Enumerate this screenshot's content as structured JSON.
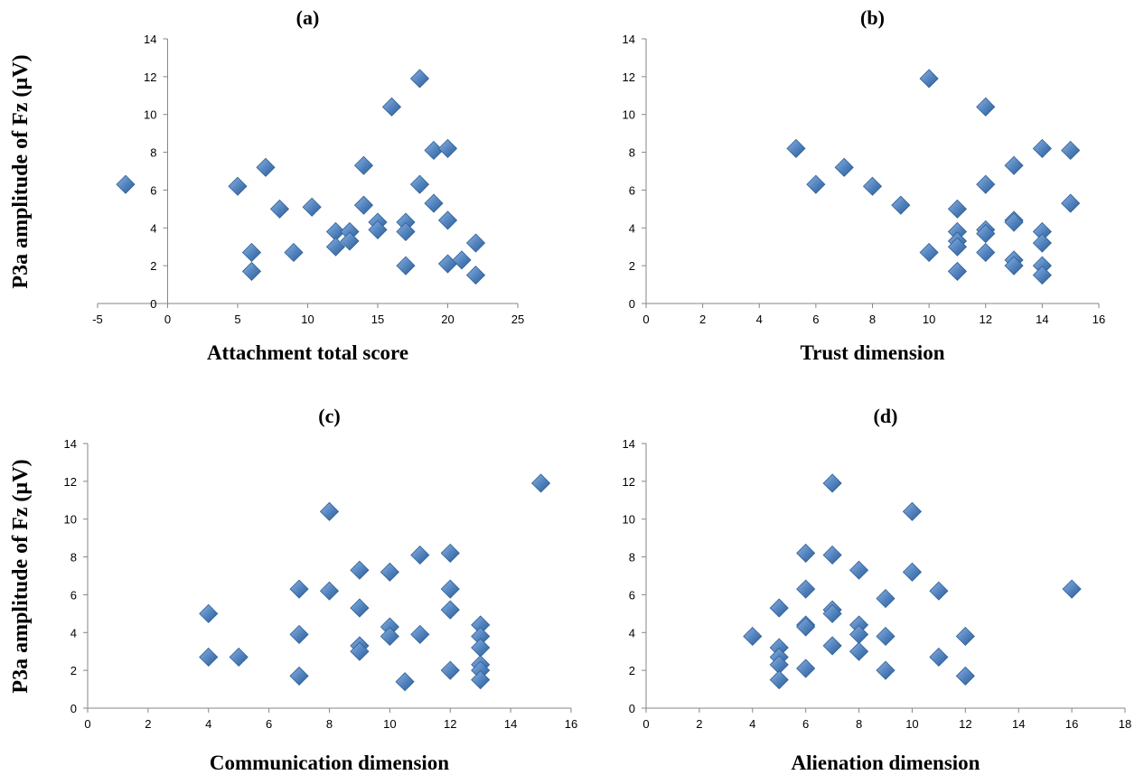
{
  "chart_data": [
    {
      "type": "scatter",
      "title": "(a)",
      "xlabel": "Attachment total score",
      "ylabel": "P3a amplitude of Fz (µV)",
      "xlim": [
        -5,
        25
      ],
      "ylim": [
        0,
        14
      ],
      "xticks": [
        -5,
        0,
        5,
        10,
        15,
        20,
        25
      ],
      "yticks": [
        0,
        2,
        4,
        6,
        8,
        10,
        12,
        14
      ],
      "marker": "diamond",
      "color": "#4f81bd",
      "points": [
        {
          "x": -3,
          "y": 6.3
        },
        {
          "x": 5,
          "y": 6.2
        },
        {
          "x": 6,
          "y": 2.7
        },
        {
          "x": 6,
          "y": 1.7
        },
        {
          "x": 7,
          "y": 7.2
        },
        {
          "x": 8,
          "y": 5.0
        },
        {
          "x": 9,
          "y": 2.7
        },
        {
          "x": 10.3,
          "y": 5.1
        },
        {
          "x": 12,
          "y": 3.8
        },
        {
          "x": 12,
          "y": 3.0
        },
        {
          "x": 13,
          "y": 3.8
        },
        {
          "x": 13,
          "y": 3.3
        },
        {
          "x": 14,
          "y": 7.3
        },
        {
          "x": 14,
          "y": 5.2
        },
        {
          "x": 15,
          "y": 4.3
        },
        {
          "x": 15,
          "y": 3.9
        },
        {
          "x": 16,
          "y": 10.4
        },
        {
          "x": 17,
          "y": 4.3
        },
        {
          "x": 17,
          "y": 3.8
        },
        {
          "x": 17,
          "y": 2.0
        },
        {
          "x": 18,
          "y": 11.9
        },
        {
          "x": 18,
          "y": 6.3
        },
        {
          "x": 19,
          "y": 8.1
        },
        {
          "x": 19,
          "y": 5.3
        },
        {
          "x": 20,
          "y": 8.2
        },
        {
          "x": 20,
          "y": 4.4
        },
        {
          "x": 20,
          "y": 2.1
        },
        {
          "x": 21,
          "y": 2.3
        },
        {
          "x": 22,
          "y": 3.2
        },
        {
          "x": 22,
          "y": 1.5
        }
      ]
    },
    {
      "type": "scatter",
      "title": "(b)",
      "xlabel": "Trust dimension",
      "ylabel": "",
      "xlim": [
        0,
        16
      ],
      "ylim": [
        0,
        14
      ],
      "xticks": [
        0,
        2,
        4,
        6,
        8,
        10,
        12,
        14,
        16
      ],
      "yticks": [
        0,
        2,
        4,
        6,
        8,
        10,
        12,
        14
      ],
      "marker": "diamond",
      "color": "#4f81bd",
      "points": [
        {
          "x": 5.3,
          "y": 8.2
        },
        {
          "x": 6,
          "y": 6.3
        },
        {
          "x": 7,
          "y": 7.2
        },
        {
          "x": 8,
          "y": 6.2
        },
        {
          "x": 9,
          "y": 5.2
        },
        {
          "x": 10,
          "y": 11.9
        },
        {
          "x": 10,
          "y": 2.7
        },
        {
          "x": 11,
          "y": 5.0
        },
        {
          "x": 11,
          "y": 3.8
        },
        {
          "x": 11,
          "y": 3.3
        },
        {
          "x": 11,
          "y": 3.0
        },
        {
          "x": 11,
          "y": 1.7
        },
        {
          "x": 12,
          "y": 10.4
        },
        {
          "x": 12,
          "y": 6.3
        },
        {
          "x": 12,
          "y": 3.9
        },
        {
          "x": 12,
          "y": 3.7
        },
        {
          "x": 12,
          "y": 2.7
        },
        {
          "x": 13,
          "y": 7.3
        },
        {
          "x": 13,
          "y": 4.4
        },
        {
          "x": 13,
          "y": 4.3
        },
        {
          "x": 13,
          "y": 2.3
        },
        {
          "x": 13,
          "y": 2.0
        },
        {
          "x": 14,
          "y": 8.2
        },
        {
          "x": 14,
          "y": 3.8
        },
        {
          "x": 14,
          "y": 3.2
        },
        {
          "x": 14,
          "y": 2.0
        },
        {
          "x": 14,
          "y": 1.5
        },
        {
          "x": 15,
          "y": 8.1
        },
        {
          "x": 15,
          "y": 5.3
        }
      ]
    },
    {
      "type": "scatter",
      "title": "(c)",
      "xlabel": "Communication dimension",
      "ylabel": "P3a amplitude of Fz (µV)",
      "xlim": [
        0,
        16
      ],
      "ylim": [
        0,
        14
      ],
      "xticks": [
        0,
        2,
        4,
        6,
        8,
        10,
        12,
        14,
        16
      ],
      "yticks": [
        0,
        2,
        4,
        6,
        8,
        10,
        12,
        14
      ],
      "marker": "diamond",
      "color": "#4f81bd",
      "points": [
        {
          "x": 4,
          "y": 5.0
        },
        {
          "x": 4,
          "y": 2.7
        },
        {
          "x": 5,
          "y": 2.7
        },
        {
          "x": 7,
          "y": 6.3
        },
        {
          "x": 7,
          "y": 3.9
        },
        {
          "x": 7,
          "y": 1.7
        },
        {
          "x": 8,
          "y": 10.4
        },
        {
          "x": 8,
          "y": 6.2
        },
        {
          "x": 9,
          "y": 7.3
        },
        {
          "x": 9,
          "y": 5.3
        },
        {
          "x": 9,
          "y": 3.3
        },
        {
          "x": 9,
          "y": 3.0
        },
        {
          "x": 10,
          "y": 7.2
        },
        {
          "x": 10,
          "y": 4.3
        },
        {
          "x": 10,
          "y": 3.8
        },
        {
          "x": 10.5,
          "y": 1.4
        },
        {
          "x": 11,
          "y": 8.1
        },
        {
          "x": 11,
          "y": 3.9
        },
        {
          "x": 12,
          "y": 8.2
        },
        {
          "x": 12,
          "y": 6.3
        },
        {
          "x": 12,
          "y": 5.2
        },
        {
          "x": 12,
          "y": 2.0
        },
        {
          "x": 13,
          "y": 4.4
        },
        {
          "x": 13,
          "y": 3.8
        },
        {
          "x": 13,
          "y": 3.2
        },
        {
          "x": 13,
          "y": 2.3
        },
        {
          "x": 13,
          "y": 2.0
        },
        {
          "x": 13,
          "y": 1.5
        },
        {
          "x": 15,
          "y": 11.9
        }
      ]
    },
    {
      "type": "scatter",
      "title": "(d)",
      "xlabel": "Alienation dimension",
      "ylabel": "",
      "xlim": [
        0,
        18
      ],
      "ylim": [
        0,
        14
      ],
      "xticks": [
        0,
        2,
        4,
        6,
        8,
        10,
        12,
        14,
        16,
        18
      ],
      "yticks": [
        0,
        2,
        4,
        6,
        8,
        10,
        12,
        14
      ],
      "marker": "diamond",
      "color": "#4f81bd",
      "points": [
        {
          "x": 4,
          "y": 3.8
        },
        {
          "x": 5,
          "y": 5.3
        },
        {
          "x": 5,
          "y": 3.2
        },
        {
          "x": 5,
          "y": 2.7
        },
        {
          "x": 5,
          "y": 2.3
        },
        {
          "x": 5,
          "y": 1.5
        },
        {
          "x": 6,
          "y": 8.2
        },
        {
          "x": 6,
          "y": 6.3
        },
        {
          "x": 6,
          "y": 4.4
        },
        {
          "x": 6,
          "y": 4.3
        },
        {
          "x": 6,
          "y": 2.1
        },
        {
          "x": 7,
          "y": 11.9
        },
        {
          "x": 7,
          "y": 8.1
        },
        {
          "x": 7,
          "y": 5.2
        },
        {
          "x": 7,
          "y": 5.0
        },
        {
          "x": 7,
          "y": 3.3
        },
        {
          "x": 8,
          "y": 7.3
        },
        {
          "x": 8,
          "y": 4.4
        },
        {
          "x": 8,
          "y": 3.9
        },
        {
          "x": 8,
          "y": 3.0
        },
        {
          "x": 9,
          "y": 5.8
        },
        {
          "x": 9,
          "y": 3.8
        },
        {
          "x": 9,
          "y": 2.0
        },
        {
          "x": 10,
          "y": 10.4
        },
        {
          "x": 10,
          "y": 7.2
        },
        {
          "x": 11,
          "y": 6.2
        },
        {
          "x": 11,
          "y": 2.7
        },
        {
          "x": 12,
          "y": 3.8
        },
        {
          "x": 12,
          "y": 1.7
        },
        {
          "x": 16,
          "y": 6.3
        }
      ]
    }
  ]
}
